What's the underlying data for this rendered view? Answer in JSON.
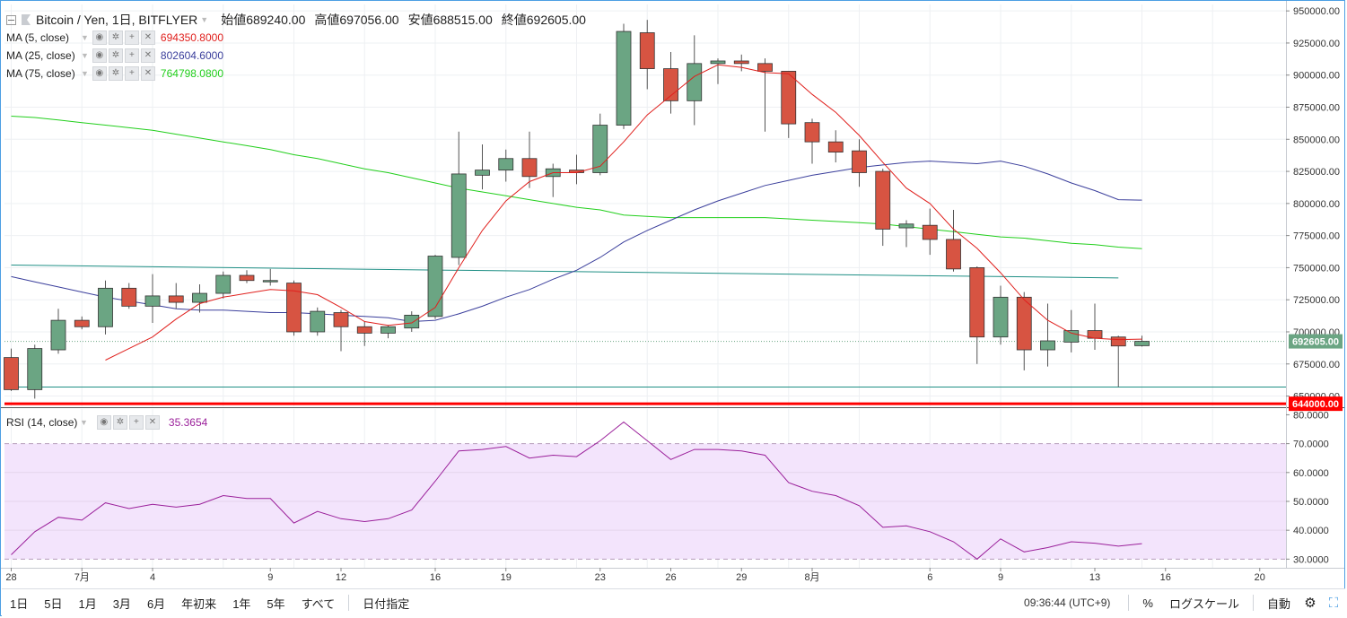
{
  "header": {
    "symbol": "Bitcoin / Yen, 1日, BITFLYER",
    "open_label": "始値",
    "open": "689240.00",
    "high_label": "高値",
    "high": "697056.00",
    "low_label": "安値",
    "low": "688515.00",
    "close_label": "終値",
    "close": "692605.00"
  },
  "indicators": [
    {
      "name": "MA (5, close)",
      "value": "694350.8000",
      "color": "#e0201d"
    },
    {
      "name": "MA (25, close)",
      "value": "802604.6000",
      "color": "#3b3f9c"
    },
    {
      "name": "MA (75, close)",
      "value": "764798.0800",
      "color": "#22cf1c"
    }
  ],
  "rsi": {
    "name": "RSI (14, close)",
    "value": "35.3654",
    "color": "#9a1f9a"
  },
  "price_labels": {
    "last": "692605.00",
    "level": "644000.00"
  },
  "bottom_bar": {
    "ranges": [
      "1日",
      "5日",
      "1月",
      "3月",
      "6月",
      "年初来",
      "1年",
      "5年",
      "すべて"
    ],
    "goto": "日付指定",
    "clock": "09:36:44 (UTC+9)",
    "percent": "%",
    "log": "ログスケール",
    "auto": "自動"
  },
  "colors": {
    "up": "#6ba583",
    "down": "#d75442",
    "accent": "#4d9fe3",
    "level_line": "#ff0000"
  },
  "chart_data": [
    {
      "type": "candlestick",
      "title": "Bitcoin / Yen, 1日, BITFLYER",
      "x_tick_labels": [
        "28",
        "7月",
        "4",
        "9",
        "12",
        "16",
        "19",
        "23",
        "26",
        "29",
        "8月",
        "6",
        "9",
        "13",
        "16",
        "20"
      ],
      "y_ticks": [
        650000,
        675000,
        700000,
        725000,
        750000,
        775000,
        800000,
        825000,
        850000,
        875000,
        900000,
        925000,
        950000
      ],
      "ylim": [
        642000,
        955000
      ],
      "candles": [
        {
          "o": 680000,
          "h": 687000,
          "l": 654000,
          "c": 655000
        },
        {
          "o": 655000,
          "h": 690000,
          "l": 648000,
          "c": 687000
        },
        {
          "o": 686000,
          "h": 718000,
          "l": 683000,
          "c": 709000
        },
        {
          "o": 709000,
          "h": 712000,
          "l": 702000,
          "c": 704000
        },
        {
          "o": 704000,
          "h": 740000,
          "l": 698000,
          "c": 734000
        },
        {
          "o": 734000,
          "h": 738000,
          "l": 718000,
          "c": 720000
        },
        {
          "o": 720000,
          "h": 745000,
          "l": 707000,
          "c": 728000
        },
        {
          "o": 728000,
          "h": 738000,
          "l": 718000,
          "c": 723000
        },
        {
          "o": 723000,
          "h": 737000,
          "l": 715000,
          "c": 730000
        },
        {
          "o": 730000,
          "h": 747000,
          "l": 726000,
          "c": 744000
        },
        {
          "o": 744000,
          "h": 748000,
          "l": 738000,
          "c": 740000
        },
        {
          "o": 740000,
          "h": 749000,
          "l": 736000,
          "c": 740000
        },
        {
          "o": 738000,
          "h": 740000,
          "l": 697000,
          "c": 700000
        },
        {
          "o": 700000,
          "h": 719000,
          "l": 697000,
          "c": 716000
        },
        {
          "o": 715000,
          "h": 717000,
          "l": 685000,
          "c": 704000
        },
        {
          "o": 704000,
          "h": 708000,
          "l": 689000,
          "c": 699000
        },
        {
          "o": 699000,
          "h": 705000,
          "l": 695000,
          "c": 704000
        },
        {
          "o": 703000,
          "h": 716000,
          "l": 700000,
          "c": 713000
        },
        {
          "o": 712000,
          "h": 760000,
          "l": 710000,
          "c": 759000
        },
        {
          "o": 758000,
          "h": 856000,
          "l": 752000,
          "c": 823000
        },
        {
          "o": 822000,
          "h": 846000,
          "l": 811000,
          "c": 826000
        },
        {
          "o": 826000,
          "h": 842000,
          "l": 817000,
          "c": 835000
        },
        {
          "o": 835000,
          "h": 856000,
          "l": 812000,
          "c": 821000
        },
        {
          "o": 821000,
          "h": 831000,
          "l": 805000,
          "c": 827000
        },
        {
          "o": 826000,
          "h": 838000,
          "l": 815000,
          "c": 824000
        },
        {
          "o": 824000,
          "h": 870000,
          "l": 822000,
          "c": 861000
        },
        {
          "o": 861000,
          "h": 940000,
          "l": 858000,
          "c": 934000
        },
        {
          "o": 933000,
          "h": 943000,
          "l": 889000,
          "c": 905000
        },
        {
          "o": 905000,
          "h": 918000,
          "l": 870000,
          "c": 880000
        },
        {
          "o": 880000,
          "h": 931000,
          "l": 861000,
          "c": 909000
        },
        {
          "o": 909000,
          "h": 913000,
          "l": 893000,
          "c": 911000
        },
        {
          "o": 911000,
          "h": 916000,
          "l": 903000,
          "c": 909000
        },
        {
          "o": 909000,
          "h": 913000,
          "l": 856000,
          "c": 903000
        },
        {
          "o": 903000,
          "h": 903000,
          "l": 851000,
          "c": 862000
        },
        {
          "o": 863000,
          "h": 866000,
          "l": 831000,
          "c": 848000
        },
        {
          "o": 848000,
          "h": 857000,
          "l": 832000,
          "c": 840000
        },
        {
          "o": 841000,
          "h": 850000,
          "l": 813000,
          "c": 824000
        },
        {
          "o": 825000,
          "h": 827000,
          "l": 767000,
          "c": 780000
        },
        {
          "o": 781000,
          "h": 787000,
          "l": 766000,
          "c": 784000
        },
        {
          "o": 783000,
          "h": 796000,
          "l": 760000,
          "c": 772000
        },
        {
          "o": 772000,
          "h": 795000,
          "l": 747000,
          "c": 749000
        },
        {
          "o": 750000,
          "h": 751000,
          "l": 675000,
          "c": 696000
        },
        {
          "o": 696000,
          "h": 736000,
          "l": 690000,
          "c": 727000
        },
        {
          "o": 727000,
          "h": 731000,
          "l": 670000,
          "c": 686000
        },
        {
          "o": 686000,
          "h": 722000,
          "l": 673000,
          "c": 693000
        },
        {
          "o": 692000,
          "h": 717000,
          "l": 684000,
          "c": 701000
        },
        {
          "o": 701000,
          "h": 722000,
          "l": 686000,
          "c": 695000
        },
        {
          "o": 696000,
          "h": 697000,
          "l": 657000,
          "c": 689000
        },
        {
          "o": 689240,
          "h": 697056,
          "l": 688515,
          "c": 692605
        }
      ],
      "ma5": [
        null,
        null,
        null,
        null,
        678000,
        687000,
        696000,
        710000,
        722000,
        727000,
        730000,
        733000,
        732000,
        729000,
        719000,
        708000,
        705000,
        707000,
        719000,
        750000,
        779000,
        802000,
        817000,
        824000,
        824000,
        829000,
        848000,
        869000,
        884000,
        899000,
        908000,
        906000,
        902000,
        901000,
        885000,
        871000,
        853000,
        832000,
        812000,
        800000,
        780000,
        765000,
        746000,
        725000,
        709000,
        699000,
        695000,
        694000,
        694350.8
      ],
      "ma25": [
        743000,
        739000,
        735000,
        731000,
        727000,
        724000,
        721000,
        718000,
        717000,
        717000,
        716000,
        715000,
        715000,
        714000,
        713000,
        712000,
        711000,
        708000,
        709000,
        714000,
        720000,
        727000,
        733000,
        741000,
        748000,
        758000,
        770000,
        779000,
        787000,
        795000,
        802000,
        808000,
        814000,
        818000,
        822000,
        825000,
        828000,
        830000,
        832000,
        833000,
        832000,
        831000,
        833000,
        829000,
        823000,
        816000,
        810000,
        803000,
        802604.6
      ],
      "ma75": [
        868000,
        867000,
        865000,
        863000,
        861000,
        859000,
        857000,
        854000,
        851000,
        848000,
        845000,
        842000,
        838000,
        835000,
        831000,
        827000,
        824000,
        820000,
        816000,
        812000,
        809000,
        806000,
        803000,
        800000,
        797000,
        795000,
        791000,
        790000,
        789000,
        789000,
        789000,
        789000,
        789000,
        788000,
        787000,
        786000,
        785000,
        784000,
        782000,
        780000,
        778000,
        776000,
        774000,
        773000,
        771000,
        769000,
        768000,
        766000,
        764798.08
      ],
      "trendline": {
        "from": 752000,
        "to": 742000
      },
      "support_line": 657000,
      "level_line": 644000,
      "last_price": 692605
    },
    {
      "type": "line",
      "title": "RSI (14, close)",
      "y_ticks": [
        30,
        40,
        50,
        60,
        70,
        80
      ],
      "ylim": [
        27,
        82
      ],
      "band": [
        30,
        70
      ],
      "values": [
        31.5,
        39.5,
        44.5,
        43.5,
        49.5,
        47.5,
        49,
        48,
        49,
        52,
        51,
        51,
        42.5,
        46.5,
        44,
        43,
        44,
        47,
        57,
        67.5,
        68,
        69,
        65,
        66,
        65.5,
        71,
        77.5,
        71,
        64.5,
        68,
        68,
        67.5,
        66,
        56.5,
        53.5,
        52,
        48.5,
        41,
        41.5,
        39.5,
        36,
        30,
        37,
        32.5,
        34,
        36,
        35.5,
        34.5,
        35.3654
      ]
    }
  ]
}
